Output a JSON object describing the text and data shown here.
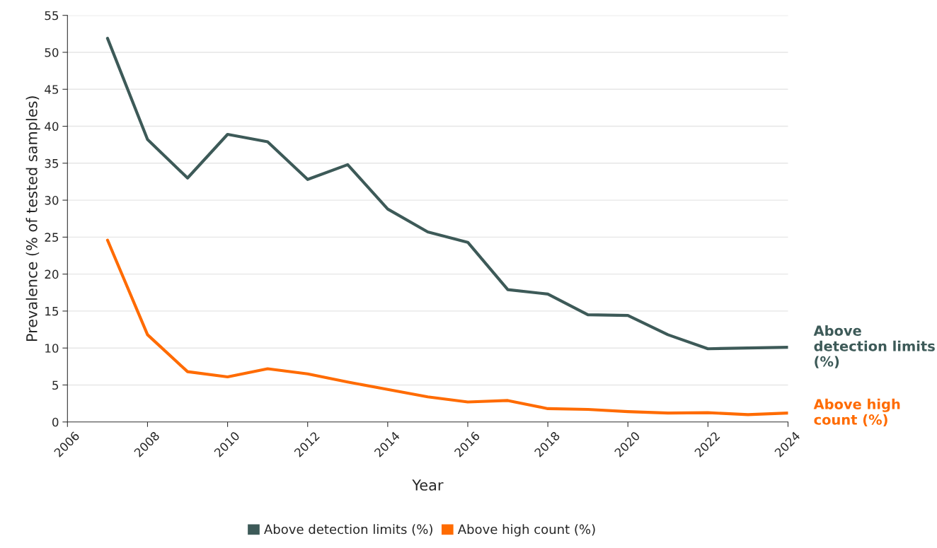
{
  "chart_data": {
    "type": "line",
    "xlabel": "Year",
    "ylabel": "Prevalence (% of tested samples)",
    "x": [
      2007,
      2008,
      2009,
      2010,
      2011,
      2012,
      2013,
      2014,
      2015,
      2016,
      2017,
      2018,
      2019,
      2020,
      2021,
      2022,
      2023,
      2024
    ],
    "series": [
      {
        "name": "Above detection limits (%)",
        "color": "#3d5a58",
        "values": [
          51.9,
          38.2,
          33.0,
          38.9,
          37.9,
          32.8,
          34.8,
          28.8,
          25.7,
          24.3,
          17.9,
          17.3,
          14.5,
          14.4,
          11.8,
          9.9,
          10.0,
          10.1
        ]
      },
      {
        "name": "Above high count (%)",
        "color": "#ff6b00",
        "values": [
          24.6,
          11.8,
          6.8,
          6.1,
          7.2,
          6.5,
          5.4,
          4.4,
          3.4,
          2.7,
          2.9,
          1.8,
          1.7,
          1.4,
          1.2,
          1.25,
          1.0,
          1.2
        ]
      }
    ],
    "xlim": [
      2006,
      2024
    ],
    "xticks": [
      2006,
      2008,
      2010,
      2012,
      2014,
      2016,
      2018,
      2020,
      2022,
      2024
    ],
    "ylim": [
      0,
      55
    ],
    "yticks": [
      0,
      5,
      10,
      15,
      20,
      25,
      30,
      35,
      40,
      45,
      50,
      55
    ],
    "grid": "y",
    "legend": "bottom",
    "marker": "none",
    "line_style": "solid"
  }
}
